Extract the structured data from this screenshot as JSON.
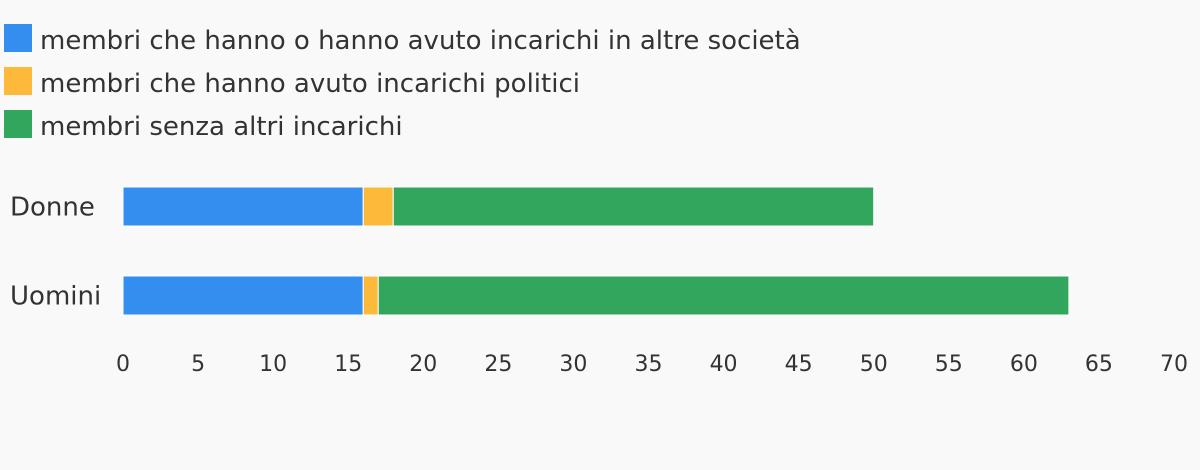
{
  "chart_data": {
    "type": "bar",
    "orientation": "horizontal",
    "stacked": true,
    "title": "",
    "xlabel": "",
    "ylabel": "",
    "categories": [
      "Donne",
      "Uomini"
    ],
    "series": [
      {
        "name": "membri che hanno o hanno avuto incarichi in altre società",
        "color": "#338eef",
        "values": [
          16,
          16
        ]
      },
      {
        "name": "membri che hanno avuto incarichi politici",
        "color": "#fdb93a",
        "values": [
          2,
          1
        ]
      },
      {
        "name": "membri senza altri incarichi",
        "color": "#32a65c",
        "values": [
          32,
          46
        ]
      }
    ],
    "xlim": [
      0,
      70
    ],
    "xticks": [
      "0",
      "5",
      "10",
      "15",
      "20",
      "25",
      "30",
      "35",
      "40",
      "45",
      "50",
      "55",
      "60",
      "65",
      "70"
    ],
    "grid": false,
    "legend_position": "top-left"
  }
}
